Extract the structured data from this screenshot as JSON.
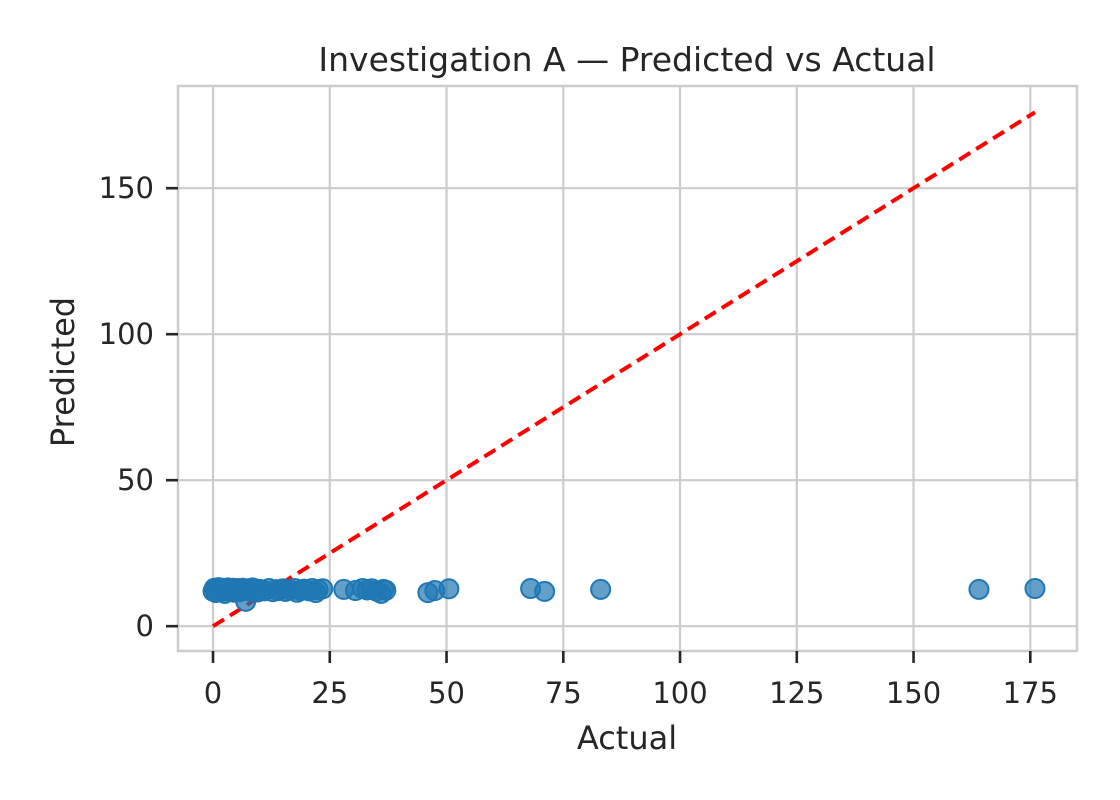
{
  "chart_data": {
    "type": "scatter",
    "title": "Investigation A — Predicted vs Actual",
    "xlabel": "Actual",
    "ylabel": "Predicted",
    "xlim": [
      -7.5,
      185
    ],
    "ylim": [
      -8.5,
      185
    ],
    "xticks": [
      0,
      25,
      50,
      75,
      100,
      125,
      150,
      175
    ],
    "yticks": [
      0,
      50,
      100,
      150
    ],
    "grid": true,
    "point_color": "#1f77b4",
    "reference_line": {
      "style": "dashed",
      "color": "#ff0000",
      "from": [
        0,
        0
      ],
      "to": [
        176,
        176
      ]
    },
    "series": [
      {
        "points": [
          [
            0,
            12
          ],
          [
            0.3,
            13
          ],
          [
            0.6,
            11.5
          ],
          [
            0.8,
            12.5
          ],
          [
            1,
            12
          ],
          [
            1.2,
            13.2
          ],
          [
            1.5,
            11.8
          ],
          [
            1.8,
            12.6
          ],
          [
            2,
            12.2
          ],
          [
            2.2,
            13
          ],
          [
            2.5,
            11.2
          ],
          [
            2.8,
            12.8
          ],
          [
            3,
            12.4
          ],
          [
            3.2,
            13.1
          ],
          [
            3.5,
            11.9
          ],
          [
            3.8,
            12.7
          ],
          [
            4,
            12
          ],
          [
            4.3,
            13
          ],
          [
            4.6,
            11.6
          ],
          [
            5,
            12.5
          ],
          [
            5.3,
            12.9
          ],
          [
            5.7,
            11.8
          ],
          [
            6,
            12.4
          ],
          [
            6.4,
            13
          ],
          [
            7,
            8.5
          ],
          [
            7.2,
            12.2
          ],
          [
            7.6,
            12.8
          ],
          [
            8,
            12
          ],
          [
            8.5,
            13.1
          ],
          [
            9,
            12.3
          ],
          [
            9.5,
            11.7
          ],
          [
            10,
            12.6
          ],
          [
            11,
            12.1
          ],
          [
            12,
            12.9
          ],
          [
            12.8,
            11.8
          ],
          [
            13.5,
            12.5
          ],
          [
            14,
            12.2
          ],
          [
            15,
            12.8
          ],
          [
            15.5,
            11.9
          ],
          [
            16.5,
            12.4
          ],
          [
            17.5,
            12.9
          ],
          [
            18,
            11.6
          ],
          [
            18.8,
            12.2
          ],
          [
            19.5,
            12.7
          ],
          [
            20.5,
            12.1
          ],
          [
            21.2,
            12.9
          ],
          [
            22,
            11.5
          ],
          [
            22.5,
            12.5
          ],
          [
            23.5,
            12.8
          ],
          [
            28,
            12.6
          ],
          [
            30.5,
            12.2
          ],
          [
            32,
            12.9
          ],
          [
            33,
            12.4
          ],
          [
            34,
            12.8
          ],
          [
            35,
            12
          ],
          [
            36,
            11.2
          ],
          [
            36.5,
            12.6
          ],
          [
            37,
            12.3
          ],
          [
            46,
            11.5
          ],
          [
            47.5,
            12.2
          ],
          [
            50.5,
            12.8
          ],
          [
            68,
            12.9
          ],
          [
            71,
            11.9
          ],
          [
            83,
            12.6
          ],
          [
            164,
            12.6
          ],
          [
            176,
            12.9
          ]
        ]
      }
    ]
  }
}
